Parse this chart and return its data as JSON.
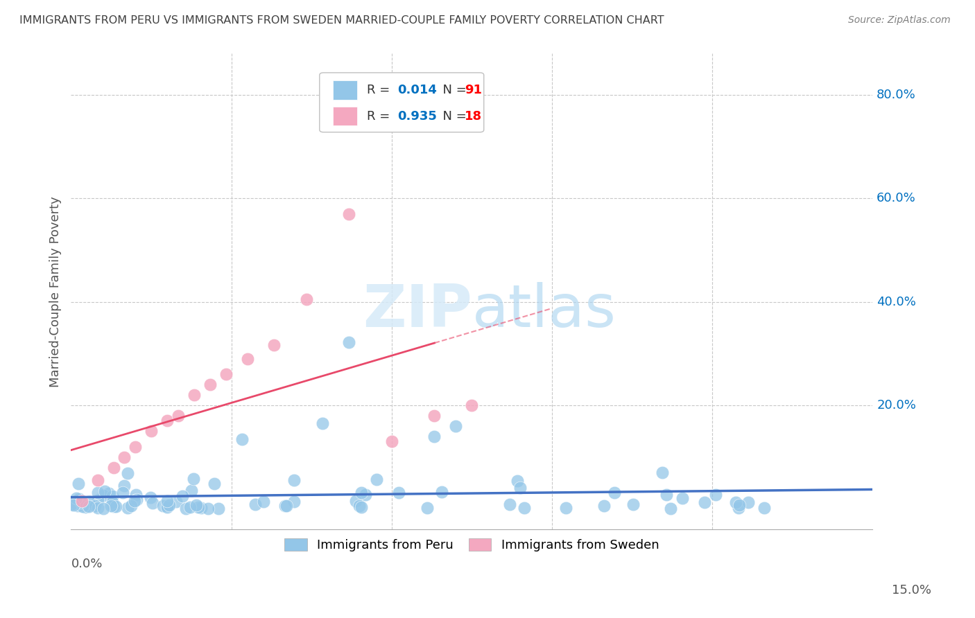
{
  "title": "IMMIGRANTS FROM PERU VS IMMIGRANTS FROM SWEDEN MARRIED-COUPLE FAMILY POVERTY CORRELATION CHART",
  "source": "Source: ZipAtlas.com",
  "ylabel": "Married-Couple Family Poverty",
  "xmin": 0.0,
  "xmax": 0.15,
  "ymin": -0.04,
  "ymax": 0.88,
  "peru_R": 0.014,
  "peru_N": 91,
  "sweden_R": 0.935,
  "sweden_N": 18,
  "peru_color": "#93C6E8",
  "sweden_color": "#F4A8C0",
  "peru_line_color": "#4472C4",
  "sweden_line_color": "#E8496A",
  "legend_R_color": "#0070C0",
  "legend_N_color": "#FF0000",
  "background_color": "#FFFFFF",
  "grid_color": "#C8C8C8",
  "title_color": "#404040",
  "source_color": "#808080",
  "ytick_vals": [
    0.0,
    0.2,
    0.4,
    0.6,
    0.8
  ],
  "ytick_labels": [
    "",
    "20.0%",
    "40.0%",
    "60.0%",
    "80.0%"
  ]
}
